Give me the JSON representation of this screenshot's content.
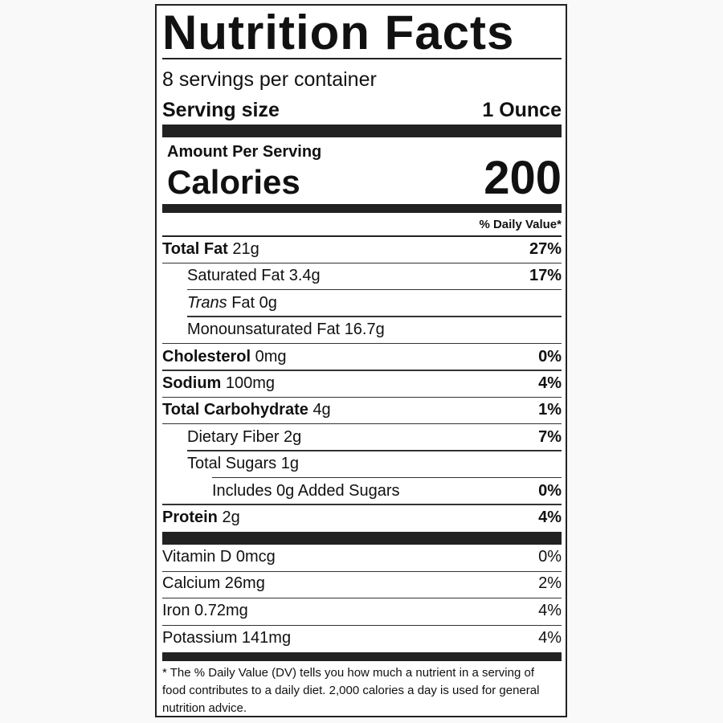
{
  "title": "Nutrition Facts",
  "servings_per_container": "8 servings per container",
  "serving_size_label": "Serving size",
  "serving_size_value": "1 Ounce",
  "amount_per_serving": "Amount Per Serving",
  "calories_label": "Calories",
  "calories_value": "200",
  "daily_value_header": "% Daily Value*",
  "nutrients": [
    {
      "name": "Total Fat",
      "amount": "21g",
      "dv": "27%",
      "bold": true,
      "indent": 0
    },
    {
      "name": "Saturated Fat",
      "amount": "3.4g",
      "dv": "17%",
      "bold": false,
      "indent": 1
    },
    {
      "name": "Trans",
      "name_suffix": "Fat",
      "amount": "0g",
      "dv": "",
      "bold": false,
      "indent": 1,
      "italic_prefix": true
    },
    {
      "name": "Monounsaturated Fat",
      "amount": "16.7g",
      "dv": "",
      "bold": false,
      "indent": 1
    },
    {
      "name": "Cholesterol",
      "amount": "0mg",
      "dv": "0%",
      "bold": true,
      "indent": 0
    },
    {
      "name": "Sodium",
      "amount": "100mg",
      "dv": "4%",
      "bold": true,
      "indent": 0
    },
    {
      "name": "Total Carbohydrate",
      "amount": "4g",
      "dv": "1%",
      "bold": true,
      "indent": 0
    },
    {
      "name": "Dietary Fiber",
      "amount": "2g",
      "dv": "7%",
      "bold": false,
      "indent": 1
    },
    {
      "name": "Total Sugars",
      "amount": "1g",
      "dv": "",
      "bold": false,
      "indent": 1
    },
    {
      "name": "Includes 0g Added Sugars",
      "amount": "",
      "dv": "0%",
      "bold": false,
      "indent": 2
    },
    {
      "name": "Protein",
      "amount": "2g",
      "dv": "4%",
      "bold": true,
      "indent": 0
    }
  ],
  "vitamins": [
    {
      "name": "Vitamin D 0mcg",
      "dv": "0%"
    },
    {
      "name": "Calcium 26mg",
      "dv": "2%"
    },
    {
      "name": "Iron 0.72mg",
      "dv": "4%"
    },
    {
      "name": "Potassium 141mg",
      "dv": "4%"
    }
  ],
  "footnote": "* The % Daily Value (DV) tells you how much a nutrient in a serving of food contributes to a daily diet. 2,000 calories a day is used for general nutrition advice."
}
